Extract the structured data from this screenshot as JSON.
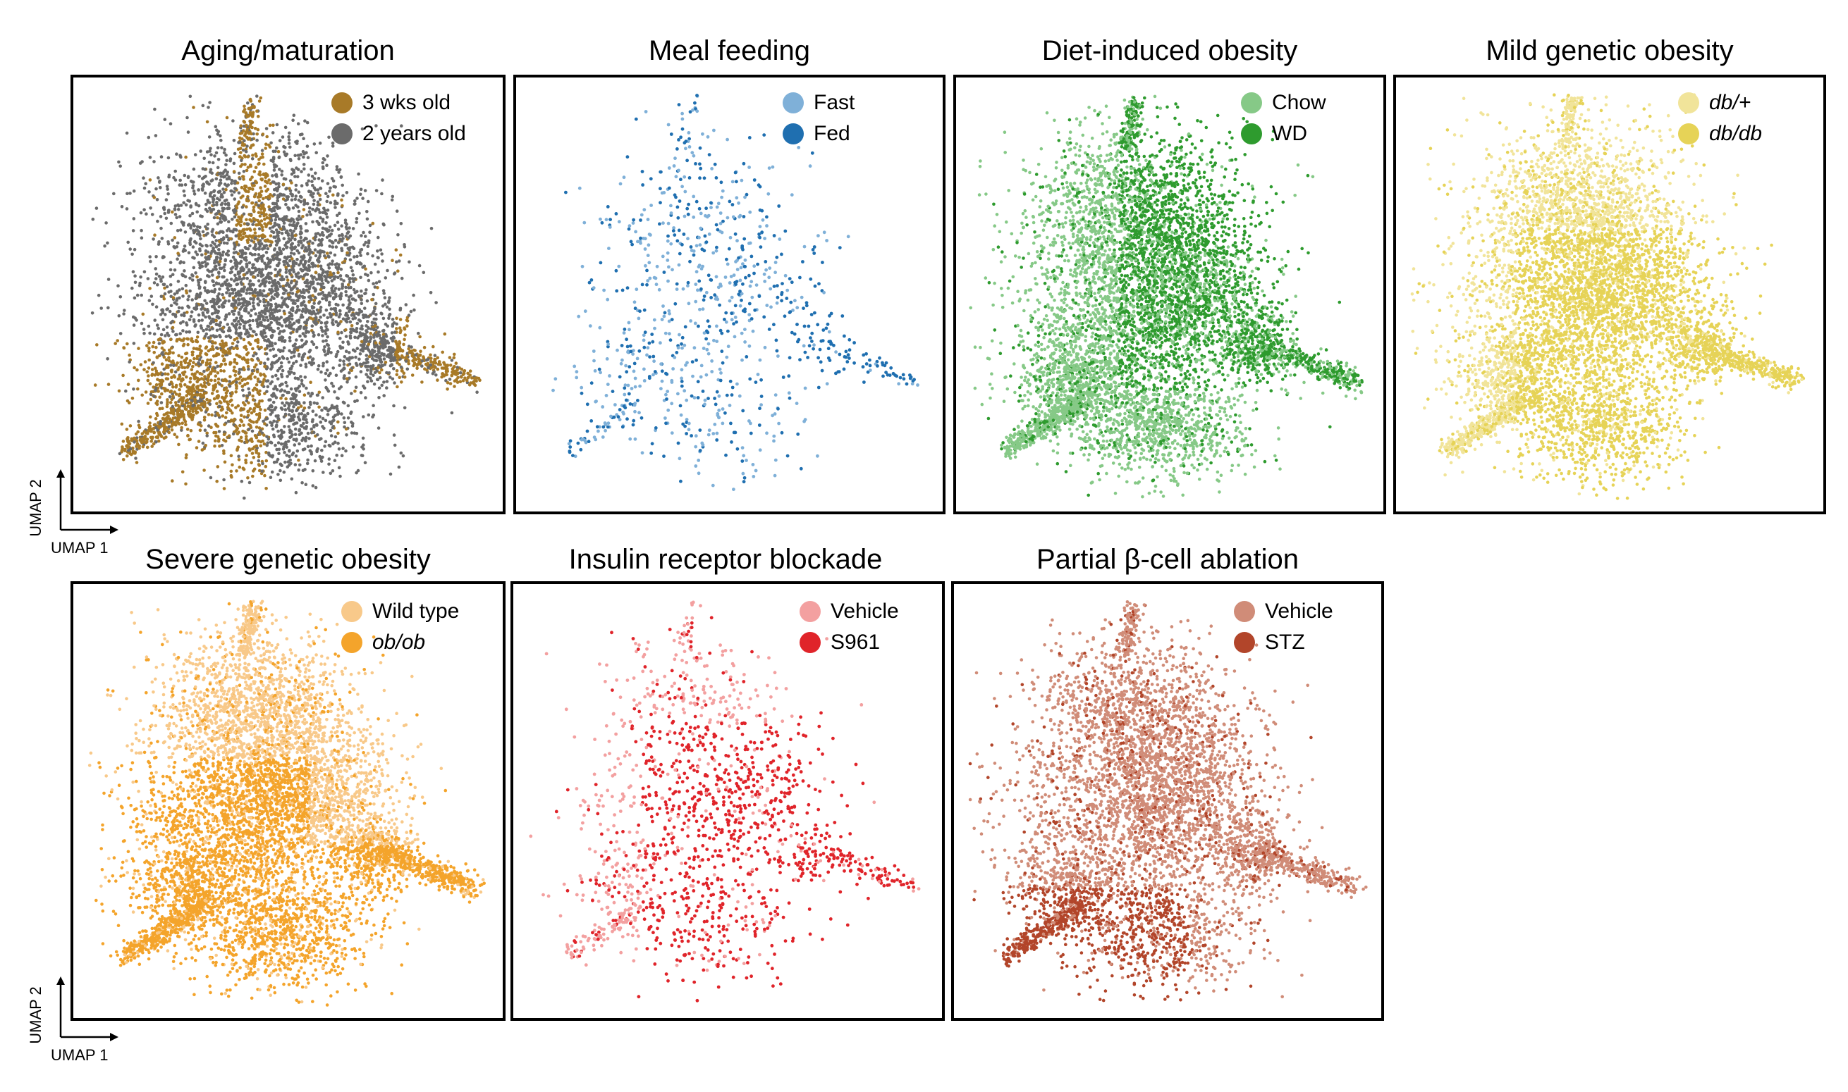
{
  "axes": {
    "x_label": "UMAP 1",
    "y_label": "UMAP 2"
  },
  "chart_data": [
    {
      "type": "scatter",
      "title": "Aging/maturation",
      "xlabel": "UMAP 1",
      "ylabel": "UMAP 2",
      "legend_position": "top-right",
      "series": [
        {
          "name": "3 wks old",
          "color": "#a87a28",
          "italic": false
        },
        {
          "name": "2 years old",
          "color": "#6b6b6b",
          "italic": false
        }
      ]
    },
    {
      "type": "scatter",
      "title": "Meal feeding",
      "legend_position": "top-right",
      "series": [
        {
          "name": "Fast",
          "color": "#7fb0d8",
          "italic": false
        },
        {
          "name": "Fed",
          "color": "#1f6fb0",
          "italic": false
        }
      ]
    },
    {
      "type": "scatter",
      "title": "Diet-induced obesity",
      "legend_position": "top-right",
      "series": [
        {
          "name": "Chow",
          "color": "#86c987",
          "italic": false
        },
        {
          "name": "WD",
          "color": "#2e9b2e",
          "italic": false
        }
      ]
    },
    {
      "type": "scatter",
      "title": "Mild genetic obesity",
      "legend_position": "top-right",
      "series": [
        {
          "name": "db/+",
          "color": "#f1e49a",
          "italic": true
        },
        {
          "name": "db/db",
          "color": "#e6d357",
          "italic": true
        }
      ]
    },
    {
      "type": "scatter",
      "title": "Severe genetic obesity",
      "xlabel": "UMAP 1",
      "ylabel": "UMAP 2",
      "legend_position": "top-right",
      "series": [
        {
          "name": "Wild type",
          "color": "#f8c98a",
          "italic": false
        },
        {
          "name": "ob/ob",
          "color": "#f4a42b",
          "italic": true
        }
      ]
    },
    {
      "type": "scatter",
      "title": "Insulin receptor blockade",
      "legend_position": "top-right",
      "series": [
        {
          "name": "Vehicle",
          "color": "#f3a0a0",
          "italic": false
        },
        {
          "name": "S961",
          "color": "#e0242a",
          "italic": false
        }
      ]
    },
    {
      "type": "scatter",
      "title": "Partial β-cell ablation",
      "legend_position": "top-right",
      "series": [
        {
          "name": "Vehicle",
          "color": "#d08c78",
          "italic": false
        },
        {
          "name": "STZ",
          "color": "#b2452a",
          "italic": false
        }
      ]
    }
  ]
}
